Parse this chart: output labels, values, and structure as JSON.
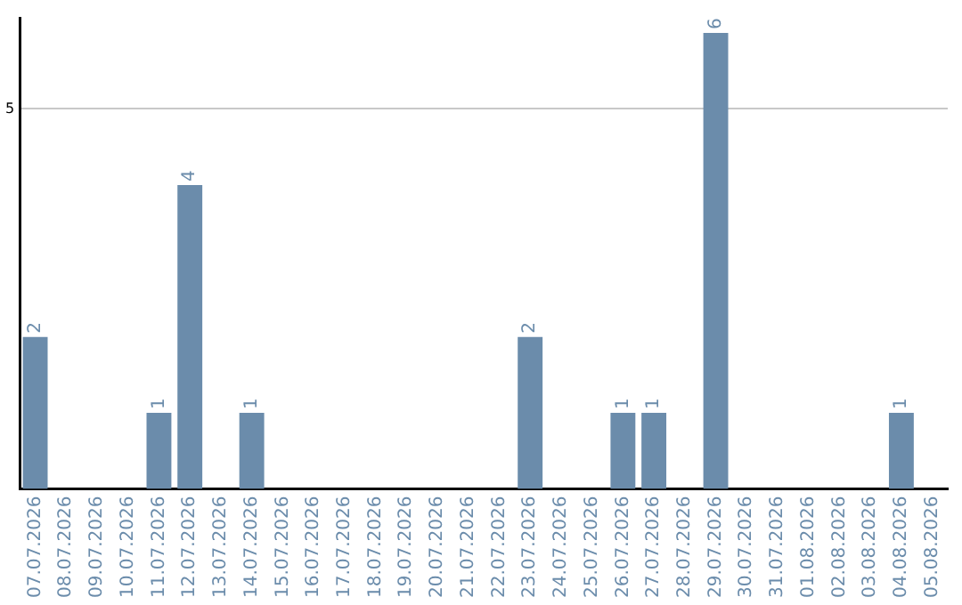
{
  "chart_data": {
    "type": "bar",
    "categories": [
      "07.07.2026",
      "08.07.2026",
      "09.07.2026",
      "10.07.2026",
      "11.07.2026",
      "12.07.2026",
      "13.07.2026",
      "14.07.2026",
      "15.07.2026",
      "16.07.2026",
      "17.07.2026",
      "18.07.2026",
      "19.07.2026",
      "20.07.2026",
      "21.07.2026",
      "22.07.2026",
      "23.07.2026",
      "24.07.2026",
      "25.07.2026",
      "26.07.2026",
      "27.07.2026",
      "28.07.2026",
      "29.07.2026",
      "30.07.2026",
      "31.07.2026",
      "01.08.2026",
      "02.08.2026",
      "03.08.2026",
      "04.08.2026",
      "05.08.2026"
    ],
    "values": [
      2,
      0,
      0,
      0,
      1,
      4,
      0,
      1,
      0,
      0,
      0,
      0,
      0,
      0,
      0,
      0,
      2,
      0,
      0,
      1,
      1,
      0,
      6,
      0,
      0,
      0,
      0,
      0,
      1,
      0
    ],
    "value_labels": [
      "2",
      null,
      null,
      null,
      "1",
      "4",
      null,
      "1",
      null,
      null,
      null,
      null,
      null,
      null,
      null,
      null,
      "2",
      null,
      null,
      "1",
      "1",
      null,
      "6",
      null,
      null,
      null,
      null,
      null,
      "1",
      null
    ],
    "color": "#6b8cab",
    "ylim": [
      0,
      6.2
    ],
    "yticks": [
      5
    ],
    "grid": "y",
    "legend": false
  }
}
